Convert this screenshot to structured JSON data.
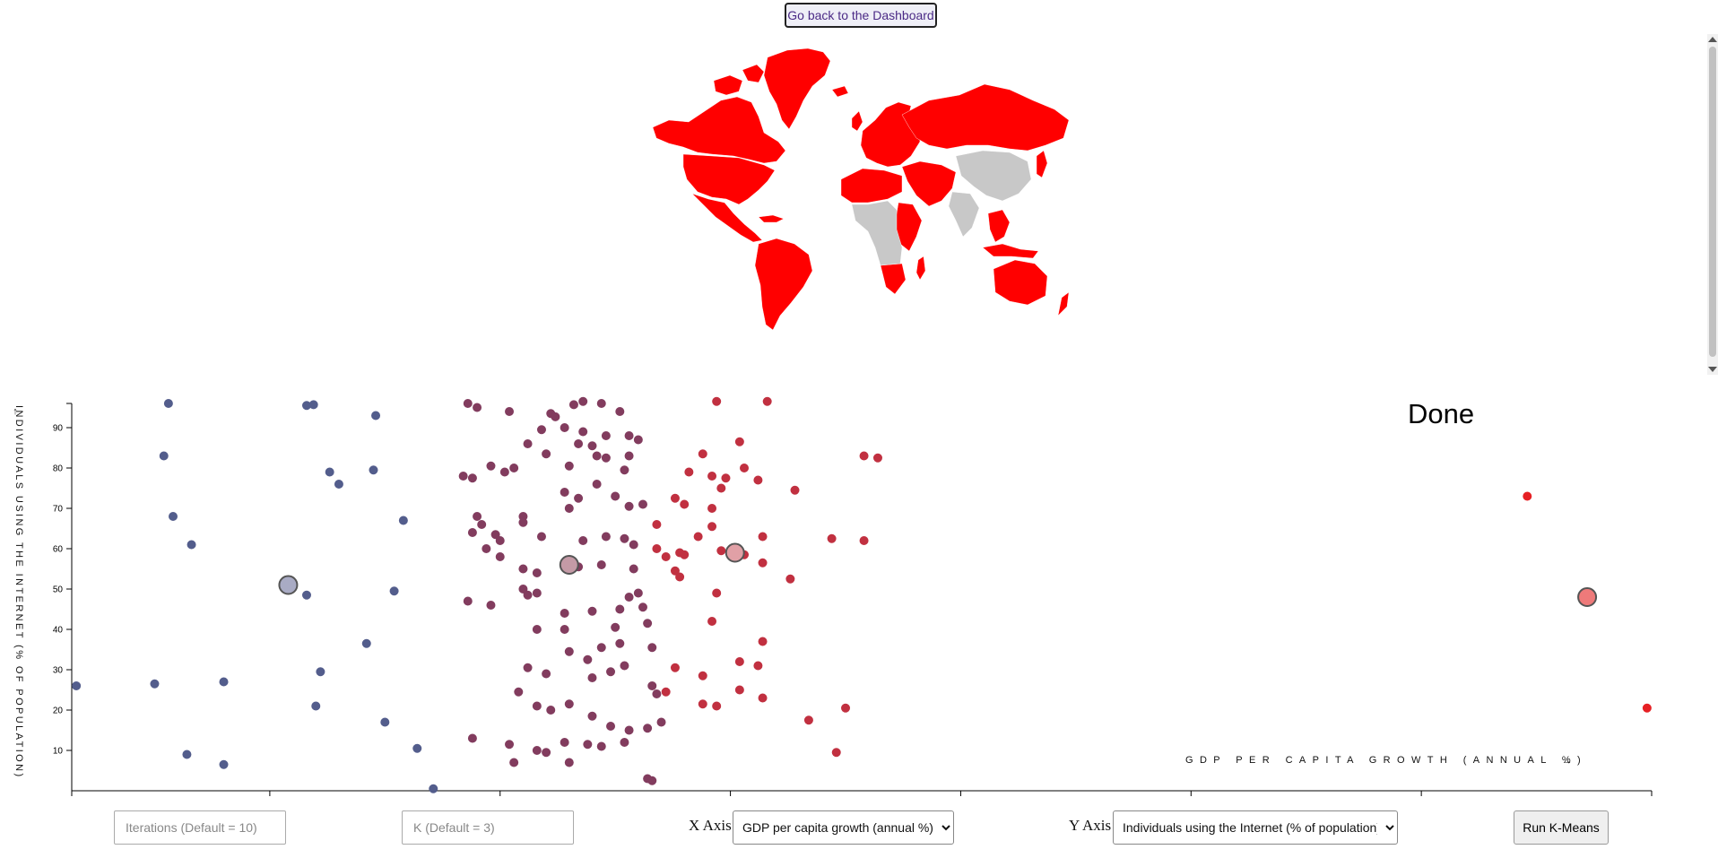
{
  "page": {
    "back_button": "Go back to the Dashboard",
    "status": "Done"
  },
  "map": {
    "highlight_color": "#ff0000",
    "other_color": "#c8c8c8"
  },
  "controls": {
    "iterations_placeholder": "Iterations (Default = 10)",
    "k_placeholder": "K (Default = 3)",
    "x_axis_label": "X Axis",
    "x_axis_selected": "GDP per capita growth (annual %)",
    "y_axis_label": "Y Axis",
    "y_axis_selected": "Individuals using the Internet (% of population)",
    "run_button": "Run K-Means"
  },
  "chart_data": {
    "type": "scatter",
    "xlabel": "GDP PER CAPITA GROWTH (ANNUAL %)",
    "ylabel": "INDIVIDUALS USING THE INTERNET (% OF POPULATION)",
    "xlim": [
      -9.3,
      25
    ],
    "ylim": [
      0,
      96
    ],
    "x_ticks": [
      -5,
      0,
      5,
      10,
      15,
      20
    ],
    "y_ticks": [
      10,
      20,
      30,
      40,
      50,
      60,
      70,
      80,
      90
    ],
    "legend": "none",
    "grid": false,
    "cluster_colors": [
      "#535d8c",
      "#823c5e",
      "#c13040",
      "#e62024"
    ],
    "centroid_colors": [
      "#a9abc4",
      "#c49aa6",
      "#e1a0a6",
      "#ee7a7a"
    ],
    "centroids": [
      {
        "x": -4.6,
        "y": 51,
        "cluster": 0
      },
      {
        "x": 1.5,
        "y": 56,
        "cluster": 1
      },
      {
        "x": 5.1,
        "y": 59,
        "cluster": 2
      },
      {
        "x": 23.6,
        "y": 48,
        "cluster": 3
      }
    ],
    "points": [
      [
        -7.2,
        96,
        0
      ],
      [
        -7.3,
        83,
        0
      ],
      [
        -7.1,
        68,
        0
      ],
      [
        -6.7,
        61,
        0
      ],
      [
        -4.2,
        95.5,
        0
      ],
      [
        -4.05,
        95.7,
        0
      ],
      [
        -3.7,
        79,
        0
      ],
      [
        -3.5,
        76,
        0
      ],
      [
        -2.7,
        93,
        0
      ],
      [
        -2.75,
        79.5,
        0
      ],
      [
        -2.1,
        67,
        0
      ],
      [
        -4.2,
        48.5,
        0
      ],
      [
        -2.3,
        49.5,
        0
      ],
      [
        -2.9,
        36.5,
        0
      ],
      [
        -3.9,
        29.5,
        0
      ],
      [
        -4.0,
        21,
        0
      ],
      [
        -2.5,
        17,
        0
      ],
      [
        -1.8,
        10.5,
        0
      ],
      [
        -1.45,
        0.5,
        0
      ],
      [
        -7.5,
        26.5,
        0
      ],
      [
        -9.2,
        26,
        0
      ],
      [
        -6.8,
        9,
        0
      ],
      [
        -6.0,
        6.5,
        0
      ],
      [
        -6.0,
        27,
        0
      ],
      [
        -0.7,
        96,
        1
      ],
      [
        -0.5,
        95,
        1
      ],
      [
        0.2,
        94,
        1
      ],
      [
        0.5,
        68,
        1
      ],
      [
        0.5,
        66.5,
        1
      ],
      [
        1.1,
        93.5,
        1
      ],
      [
        1.2,
        92.7,
        1
      ],
      [
        1.6,
        95.7,
        1
      ],
      [
        1.8,
        96.5,
        1
      ],
      [
        2.2,
        96,
        1
      ],
      [
        2.6,
        94,
        1
      ],
      [
        0.9,
        89.5,
        1
      ],
      [
        1.4,
        90,
        1
      ],
      [
        1.8,
        89,
        1
      ],
      [
        2.3,
        88,
        1
      ],
      [
        2.8,
        88,
        1
      ],
      [
        3.0,
        87,
        1
      ],
      [
        0.6,
        86,
        1
      ],
      [
        1.0,
        83.5,
        1
      ],
      [
        1.5,
        80.5,
        1
      ],
      [
        1.7,
        86,
        1
      ],
      [
        2.0,
        85.5,
        1
      ],
      [
        2.1,
        83,
        1
      ],
      [
        2.3,
        82.5,
        1
      ],
      [
        2.7,
        79.5,
        1
      ],
      [
        2.8,
        83,
        1
      ],
      [
        -0.8,
        78,
        1
      ],
      [
        -0.6,
        77.5,
        1
      ],
      [
        -0.2,
        80.5,
        1
      ],
      [
        0.1,
        79,
        1
      ],
      [
        0.3,
        80,
        1
      ],
      [
        1.4,
        74,
        1
      ],
      [
        1.5,
        70,
        1
      ],
      [
        1.7,
        72.5,
        1
      ],
      [
        2.1,
        76,
        1
      ],
      [
        2.5,
        73,
        1
      ],
      [
        2.8,
        70.5,
        1
      ],
      [
        3.1,
        71,
        1
      ],
      [
        -0.5,
        68,
        1
      ],
      [
        -0.4,
        66,
        1
      ],
      [
        -0.6,
        64,
        1
      ],
      [
        -0.1,
        63.5,
        1
      ],
      [
        -0.3,
        60,
        1
      ],
      [
        0.0,
        62,
        1
      ],
      [
        0.9,
        63,
        1
      ],
      [
        1.8,
        62,
        1
      ],
      [
        2.3,
        63,
        1
      ],
      [
        2.7,
        62.5,
        1
      ],
      [
        2.9,
        61,
        1
      ],
      [
        0.5,
        55,
        1
      ],
      [
        0.8,
        54,
        1
      ],
      [
        1.7,
        55.5,
        1
      ],
      [
        2.2,
        56,
        1
      ],
      [
        2.9,
        55,
        1
      ],
      [
        0.0,
        58,
        1
      ],
      [
        -0.7,
        47,
        1
      ],
      [
        -0.2,
        46,
        1
      ],
      [
        0.6,
        48.5,
        1
      ],
      [
        0.8,
        49,
        1
      ],
      [
        0.5,
        50,
        1
      ],
      [
        2.8,
        48,
        1
      ],
      [
        3.0,
        49,
        1
      ],
      [
        2.6,
        45,
        1
      ],
      [
        3.1,
        45.5,
        1
      ],
      [
        1.4,
        44,
        1
      ],
      [
        2.0,
        44.5,
        1
      ],
      [
        0.8,
        40,
        1
      ],
      [
        1.4,
        40,
        1
      ],
      [
        2.5,
        40.5,
        1
      ],
      [
        3.2,
        41.5,
        1
      ],
      [
        1.5,
        34.5,
        1
      ],
      [
        1.9,
        32.5,
        1
      ],
      [
        2.2,
        35.5,
        1
      ],
      [
        2.6,
        36.5,
        1
      ],
      [
        3.3,
        35.5,
        1
      ],
      [
        0.6,
        30.5,
        1
      ],
      [
        1.0,
        29,
        1
      ],
      [
        2.0,
        28,
        1
      ],
      [
        2.4,
        29.5,
        1
      ],
      [
        2.7,
        31,
        1
      ],
      [
        3.3,
        26,
        1
      ],
      [
        3.4,
        24,
        1
      ],
      [
        0.4,
        24.5,
        1
      ],
      [
        0.8,
        21,
        1
      ],
      [
        1.1,
        20,
        1
      ],
      [
        1.5,
        21.5,
        1
      ],
      [
        2.0,
        18.5,
        1
      ],
      [
        2.4,
        16,
        1
      ],
      [
        2.8,
        15,
        1
      ],
      [
        3.2,
        15.5,
        1
      ],
      [
        3.5,
        17,
        1
      ],
      [
        -0.6,
        13,
        1
      ],
      [
        0.2,
        11.5,
        1
      ],
      [
        0.8,
        10,
        1
      ],
      [
        1.0,
        9.5,
        1
      ],
      [
        1.4,
        12,
        1
      ],
      [
        1.9,
        11.5,
        1
      ],
      [
        2.2,
        11,
        1
      ],
      [
        2.7,
        12,
        1
      ],
      [
        3.2,
        3,
        1
      ],
      [
        3.3,
        2.5,
        1
      ],
      [
        0.3,
        7,
        1
      ],
      [
        1.5,
        7,
        1
      ],
      [
        4.7,
        96.5,
        2
      ],
      [
        5.8,
        96.5,
        2
      ],
      [
        5.2,
        86.5,
        2
      ],
      [
        4.4,
        83.5,
        2
      ],
      [
        4.1,
        79,
        2
      ],
      [
        4.6,
        78,
        2
      ],
      [
        4.9,
        77.5,
        2
      ],
      [
        5.3,
        80,
        2
      ],
      [
        5.6,
        77,
        2
      ],
      [
        6.4,
        74.5,
        2
      ],
      [
        7.9,
        83,
        2
      ],
      [
        8.2,
        82.5,
        2
      ],
      [
        3.8,
        72.5,
        2
      ],
      [
        4.0,
        71,
        2
      ],
      [
        4.6,
        70,
        2
      ],
      [
        4.8,
        75,
        2
      ],
      [
        3.4,
        66,
        2
      ],
      [
        4.3,
        63,
        2
      ],
      [
        4.6,
        65.5,
        2
      ],
      [
        5.7,
        63,
        2
      ],
      [
        7.2,
        62.5,
        2
      ],
      [
        7.9,
        62,
        2
      ],
      [
        3.4,
        60,
        2
      ],
      [
        3.6,
        58,
        2
      ],
      [
        3.9,
        59,
        2
      ],
      [
        4.0,
        58.5,
        2
      ],
      [
        4.8,
        59.5,
        2
      ],
      [
        5.3,
        58.5,
        2
      ],
      [
        5.7,
        56.5,
        2
      ],
      [
        6.3,
        52.5,
        2
      ],
      [
        3.8,
        54.5,
        2
      ],
      [
        3.9,
        53,
        2
      ],
      [
        4.7,
        49,
        2
      ],
      [
        4.6,
        42,
        2
      ],
      [
        5.7,
        37,
        2
      ],
      [
        3.8,
        30.5,
        2
      ],
      [
        4.4,
        28.5,
        2
      ],
      [
        5.2,
        32,
        2
      ],
      [
        5.6,
        31,
        2
      ],
      [
        3.6,
        24.5,
        2
      ],
      [
        4.4,
        21.5,
        2
      ],
      [
        4.7,
        21,
        2
      ],
      [
        5.2,
        25,
        2
      ],
      [
        5.7,
        23,
        2
      ],
      [
        6.7,
        17.5,
        2
      ],
      [
        7.5,
        20.5,
        2
      ],
      [
        7.3,
        9.5,
        2
      ],
      [
        22.3,
        73,
        3
      ],
      [
        24.9,
        20.5,
        3
      ]
    ]
  }
}
